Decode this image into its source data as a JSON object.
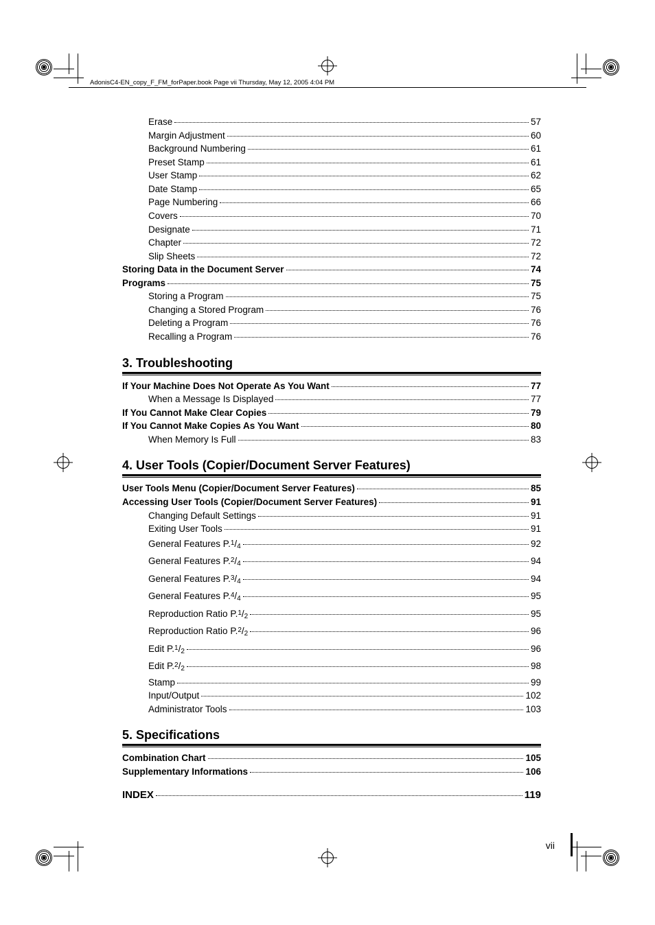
{
  "header": "AdonisC4-EN_copy_F_FM_forPaper.book  Page vii  Thursday, May 12, 2005  4:04 PM",
  "page_number": "vii",
  "sections": [
    {
      "pre_items": [
        {
          "label": "Erase",
          "page": "57",
          "indent": 1,
          "bold": false
        },
        {
          "label": "Margin Adjustment",
          "page": "60",
          "indent": 1,
          "bold": false
        },
        {
          "label": "Background Numbering",
          "page": "61",
          "indent": 1,
          "bold": false
        },
        {
          "label": "Preset Stamp",
          "page": "61",
          "indent": 1,
          "bold": false
        },
        {
          "label": "User Stamp",
          "page": "62",
          "indent": 1,
          "bold": false
        },
        {
          "label": "Date Stamp",
          "page": "65",
          "indent": 1,
          "bold": false
        },
        {
          "label": "Page Numbering",
          "page": "66",
          "indent": 1,
          "bold": false
        },
        {
          "label": "Covers",
          "page": "70",
          "indent": 1,
          "bold": false
        },
        {
          "label": "Designate",
          "page": "71",
          "indent": 1,
          "bold": false
        },
        {
          "label": "Chapter",
          "page": "72",
          "indent": 1,
          "bold": false
        },
        {
          "label": "Slip Sheets",
          "page": "72",
          "indent": 1,
          "bold": false
        },
        {
          "label": "Storing Data in the Document Server",
          "page": "74",
          "indent": 0,
          "bold": true
        },
        {
          "label": "Programs",
          "page": "75",
          "indent": 0,
          "bold": true
        },
        {
          "label": "Storing a Program",
          "page": "75",
          "indent": 1,
          "bold": false
        },
        {
          "label": "Changing a Stored Program",
          "page": "76",
          "indent": 1,
          "bold": false
        },
        {
          "label": "Deleting a Program",
          "page": "76",
          "indent": 1,
          "bold": false
        },
        {
          "label": "Recalling a Program",
          "page": "76",
          "indent": 1,
          "bold": false
        }
      ]
    },
    {
      "heading": "3. Troubleshooting",
      "items": [
        {
          "label": "If Your Machine Does Not Operate As You Want",
          "page": "77",
          "indent": 0,
          "bold": true
        },
        {
          "label": "When a Message Is Displayed",
          "page": "77",
          "indent": 1,
          "bold": false
        },
        {
          "label": "If You Cannot Make Clear Copies",
          "page": "79",
          "indent": 0,
          "bold": true
        },
        {
          "label": "If You Cannot Make Copies As You Want",
          "page": "80",
          "indent": 0,
          "bold": true
        },
        {
          "label": "When Memory Is Full",
          "page": "83",
          "indent": 1,
          "bold": false
        }
      ]
    },
    {
      "heading": "4. User Tools (Copier/Document Server Features)",
      "items": [
        {
          "label": "User Tools Menu (Copier/Document Server Features)",
          "page": "85",
          "indent": 0,
          "bold": true
        },
        {
          "label": "Accessing User Tools (Copier/Document Server Features)",
          "page": "91",
          "indent": 0,
          "bold": true
        },
        {
          "label": "Changing Default Settings",
          "page": "91",
          "indent": 1,
          "bold": false
        },
        {
          "label": "Exiting User Tools",
          "page": "91",
          "indent": 1,
          "bold": false
        },
        {
          "label": "General Features P.",
          "fraction": {
            "num": "1",
            "den": "4"
          },
          "page": "92",
          "indent": 1,
          "bold": false
        },
        {
          "label": "General Features P.",
          "fraction": {
            "num": "2",
            "den": "4"
          },
          "page": "94",
          "indent": 1,
          "bold": false
        },
        {
          "label": "General Features P.",
          "fraction": {
            "num": "3",
            "den": "4"
          },
          "page": "94",
          "indent": 1,
          "bold": false
        },
        {
          "label": "General Features P.",
          "fraction": {
            "num": "4",
            "den": "4"
          },
          "page": "95",
          "indent": 1,
          "bold": false
        },
        {
          "label": "Reproduction Ratio P.",
          "fraction": {
            "num": "1",
            "den": "2"
          },
          "page": "95",
          "indent": 1,
          "bold": false
        },
        {
          "label": "Reproduction Ratio P.",
          "fraction": {
            "num": "2",
            "den": "2"
          },
          "page": "96",
          "indent": 1,
          "bold": false
        },
        {
          "label": "Edit P.",
          "fraction": {
            "num": "1",
            "den": "2"
          },
          "page": "96",
          "indent": 1,
          "bold": false
        },
        {
          "label": "Edit P.",
          "fraction": {
            "num": "2",
            "den": "2"
          },
          "page": "98",
          "indent": 1,
          "bold": false
        },
        {
          "label": "Stamp",
          "page": "99",
          "indent": 1,
          "bold": false
        },
        {
          "label": "Input/Output",
          "page": "102",
          "indent": 1,
          "bold": false
        },
        {
          "label": "Administrator Tools",
          "page": "103",
          "indent": 1,
          "bold": false
        }
      ]
    },
    {
      "heading": "5. Specifications",
      "items": [
        {
          "label": "Combination Chart",
          "page": "105",
          "indent": 0,
          "bold": true
        },
        {
          "label": "Supplementary Informations",
          "page": "106",
          "indent": 0,
          "bold": true
        },
        {
          "label": "INDEX",
          "page": " 119",
          "indent": 0,
          "bold": true,
          "big": true,
          "spaced": true
        }
      ]
    }
  ]
}
